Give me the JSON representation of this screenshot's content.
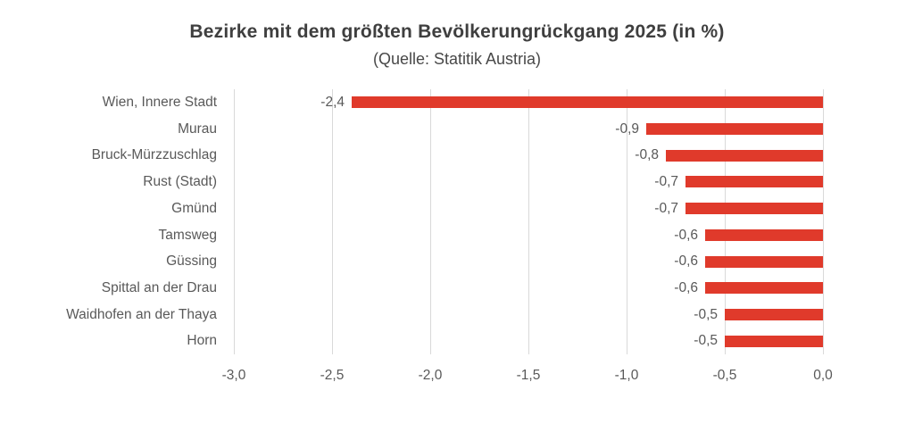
{
  "colors": {
    "bar": "#e03a2b",
    "grid": "#d9d9d9",
    "axis_text": "#595959",
    "title_text": "#3f3f3f"
  },
  "chart_data": {
    "type": "bar",
    "orientation": "horizontal",
    "title": "Bezirke mit dem größten Bevölkerungrückgang 2025 (in %)",
    "subtitle": "(Quelle: Statitik Austria)",
    "categories": [
      "Wien, Innere Stadt",
      "Murau",
      "Bruck-Mürzzuschlag",
      "Rust (Stadt)",
      "Gmünd",
      "Tamsweg",
      "Güssing",
      "Spittal an der Drau",
      "Waidhofen an der Thaya",
      "Horn"
    ],
    "values": [
      -2.4,
      -0.9,
      -0.8,
      -0.7,
      -0.7,
      -0.6,
      -0.6,
      -0.6,
      -0.5,
      -0.5
    ],
    "value_labels": [
      "-2,4",
      "-0,9",
      "-0,8",
      "-0,7",
      "-0,7",
      "-0,6",
      "-0,6",
      "-0,6",
      "-0,5",
      "-0,5"
    ],
    "xlim": [
      -3.0,
      0.0
    ],
    "x_ticks": [
      -3.0,
      -2.5,
      -2.0,
      -1.5,
      -1.0,
      -0.5,
      0.0
    ],
    "x_tick_labels": [
      "-3,0",
      "-2,5",
      "-2,0",
      "-1,5",
      "-1,0",
      "-0,5",
      "0,0"
    ],
    "grid": true,
    "legend": "none",
    "xlabel": "",
    "ylabel": ""
  }
}
